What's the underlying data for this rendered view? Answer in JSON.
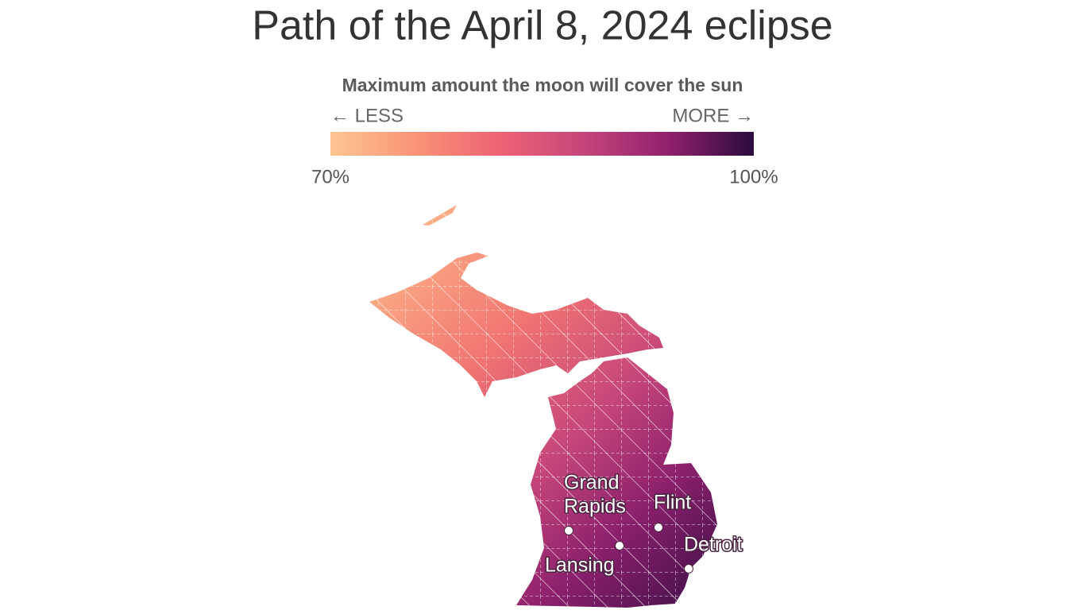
{
  "header": {
    "title": "Path of the April 8, 2024 eclipse"
  },
  "legend": {
    "title": "Maximum amount the moon will cover the sun",
    "less": "← LESS",
    "more": "MORE →",
    "min_label": "70%",
    "max_label": "100%"
  },
  "cities": [
    {
      "label": "Grand"
    },
    {
      "label": "Rapids"
    },
    {
      "label": "Flint"
    },
    {
      "label": "Detroit"
    },
    {
      "label": "Lansing"
    }
  ]
}
